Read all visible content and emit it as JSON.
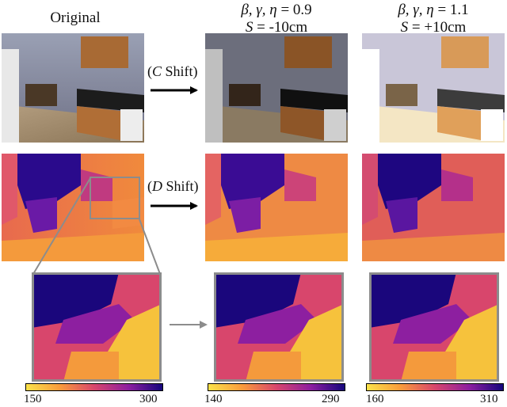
{
  "headers": {
    "original": "Original",
    "col_minus": {
      "vars": "β, γ, η",
      "eq": " = 0.9",
      "s_var": "S",
      "s_val": " = -10cm"
    },
    "col_plus": {
      "vars": "β, γ, η",
      "eq": " = 1.1",
      "s_var": "S",
      "s_val": " = +10cm"
    }
  },
  "shifts": {
    "color": {
      "open": "(",
      "var": "C",
      "word": " Shift)"
    },
    "depth": {
      "open": "(",
      "var": "D",
      "word": " Shift)"
    }
  },
  "colorbars": [
    {
      "min": "150",
      "max": "300"
    },
    {
      "min": "140",
      "max": "290"
    },
    {
      "min": "160",
      "max": "310"
    }
  ],
  "colors": {
    "inferno_low": "#fbe34a",
    "inferno_mid": "#d8466c",
    "inferno_high": "#14067c",
    "frame_gray": "#8c8c8c",
    "arrow_black": "#000000",
    "arrow_gray": "#8c8c8c"
  }
}
